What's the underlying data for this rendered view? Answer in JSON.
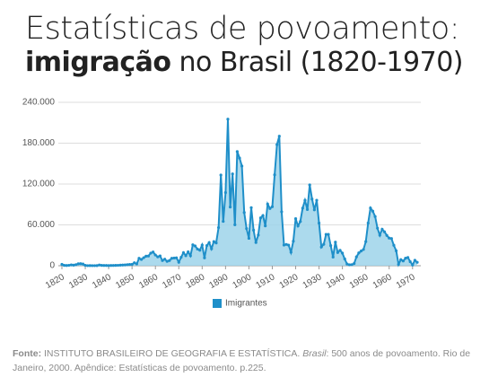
{
  "title_line1": "Estatísticas de povoamento:",
  "title_bold": "imigração",
  "title_rest": "no Brasil (1820-1970)",
  "chart_data": {
    "type": "area",
    "x": [
      1820,
      1821,
      1822,
      1823,
      1824,
      1825,
      1826,
      1827,
      1828,
      1829,
      1830,
      1831,
      1832,
      1833,
      1834,
      1835,
      1836,
      1837,
      1838,
      1839,
      1840,
      1841,
      1842,
      1843,
      1844,
      1845,
      1846,
      1847,
      1848,
      1849,
      1850,
      1851,
      1852,
      1853,
      1854,
      1855,
      1856,
      1857,
      1858,
      1859,
      1860,
      1861,
      1862,
      1863,
      1864,
      1865,
      1866,
      1867,
      1868,
      1869,
      1870,
      1871,
      1872,
      1873,
      1874,
      1875,
      1876,
      1877,
      1878,
      1879,
      1880,
      1881,
      1882,
      1883,
      1884,
      1885,
      1886,
      1887,
      1888,
      1889,
      1890,
      1891,
      1892,
      1893,
      1894,
      1895,
      1896,
      1897,
      1898,
      1899,
      1900,
      1901,
      1902,
      1903,
      1904,
      1905,
      1906,
      1907,
      1908,
      1909,
      1910,
      1911,
      1912,
      1913,
      1914,
      1915,
      1916,
      1917,
      1918,
      1919,
      1920,
      1921,
      1922,
      1923,
      1924,
      1925,
      1926,
      1927,
      1928,
      1929,
      1930,
      1931,
      1932,
      1933,
      1934,
      1935,
      1936,
      1937,
      1938,
      1939,
      1940,
      1941,
      1942,
      1943,
      1944,
      1945,
      1946,
      1947,
      1948,
      1949,
      1950,
      1951,
      1952,
      1953,
      1954,
      1955,
      1956,
      1957,
      1958,
      1959,
      1960,
      1961,
      1962,
      1963,
      1964,
      1965,
      1966,
      1967,
      1968,
      1969,
      1970,
      1971,
      1972
    ],
    "series": [
      {
        "name": "Imigrantes",
        "color": "#1f8fc9",
        "fill": "#9dd3ea",
        "values": [
          2000,
          500,
          300,
          600,
          1200,
          800,
          1500,
          2800,
          3000,
          2500,
          500,
          100,
          200,
          100,
          100,
          200,
          1000,
          500,
          400,
          300,
          200,
          300,
          400,
          500,
          600,
          800,
          1000,
          1200,
          1500,
          1800,
          2000,
          4400,
          2700,
          10900,
          9200,
          11798,
          14008,
          14244,
          18529,
          20114,
          15774,
          13003,
          14295,
          7642,
          9578,
          6452,
          7538,
          10902,
          11315,
          11527,
          5158,
          12431,
          19219,
          14742,
          20332,
          14590,
          30747,
          29029,
          24456,
          22788,
          30355,
          11548,
          29589,
          34015,
          24890,
          35440,
          33486,
          55965,
          133253,
          65165,
          107474,
          215239,
          86203,
          134805,
          60182,
          167618,
          158132,
          146362,
          78109,
          54629,
          40300,
          85306,
          52204,
          34062,
          45028,
          70295,
          73672,
          58552,
          90536,
          84090,
          86751,
          133575,
          177887,
          190333,
          79232,
          30333,
          31245,
          30277,
          19793,
          36027,
          69042,
          58476,
          65007,
          84549,
          96052,
          82547,
          118686,
          97974,
          82061,
          96186,
          62610,
          27465,
          31494,
          46081,
          46027,
          29585,
          12773,
          34677,
          19388,
          22668,
          18449,
          9938,
          2425,
          1308,
          1593,
          3168,
          13039,
          18753,
          21568,
          23844,
          35492,
          62594,
          84720,
          80070,
          72248,
          55166,
          44806,
          53613,
          49839,
          44520,
          40507,
          40000,
          30000,
          22000,
          2000,
          9000,
          7000,
          11000,
          12000,
          6000,
          1000,
          8000,
          5000
        ]
      }
    ],
    "xlim": [
      1820,
      1972
    ],
    "xticks": [
      1820,
      1830,
      1840,
      1850,
      1860,
      1870,
      1880,
      1890,
      1900,
      1910,
      1920,
      1930,
      1940,
      1950,
      1960,
      1970
    ],
    "ylim": [
      0,
      240000
    ],
    "yticks": [
      0,
      {
        "value": 60000,
        "label": "60.000"
      },
      {
        "value": 120000,
        "label": "120.000"
      },
      {
        "value": 180000,
        "label": "180.000"
      },
      {
        "value": 240000,
        "label": "240.000"
      }
    ],
    "grid": true,
    "legend": "bottom"
  },
  "source": {
    "label": "Fonte:",
    "text1": "INSTITUTO BRASILEIRO DE GEOGRAFIA E ESTATÍSTICA.",
    "italic": "Brasil",
    "text2": ": 500 anos de povoamento. Rio de Janeiro, 2000. Apêndice: Estatísticas de povoamento. p.225."
  }
}
